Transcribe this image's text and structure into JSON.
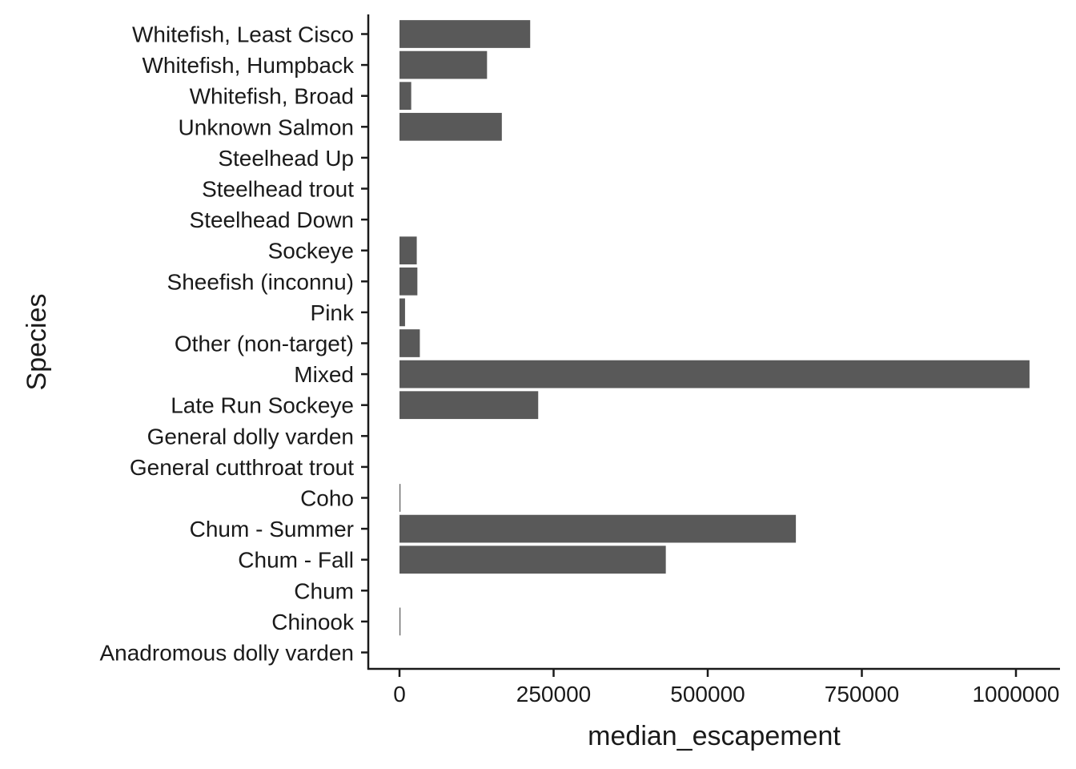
{
  "chart_data": {
    "type": "bar",
    "orientation": "horizontal",
    "xlabel": "median_escapement",
    "ylabel": "Species",
    "xlim": [
      -25000,
      1075000
    ],
    "x_ticks": [
      0,
      250000,
      500000,
      750000,
      1000000
    ],
    "x_tick_labels": [
      "0",
      "250000",
      "500000",
      "750000",
      "1000000"
    ],
    "grid": false,
    "legend": "none",
    "bar_color": "#595959",
    "categories": [
      "Anadromous dolly varden",
      "Chinook",
      "Chum",
      "Chum - Fall",
      "Chum - Summer",
      "Coho",
      "General cutthroat trout",
      "General dolly varden",
      "Late Run Sockeye",
      "Mixed",
      "Other (non-target)",
      "Pink",
      "Sheefish (inconnu)",
      "Sockeye",
      "Steelhead Down",
      "Steelhead trout",
      "Steelhead Up",
      "Unknown Salmon",
      "Whitefish, Broad",
      "Whitefish, Humpback",
      "Whitefish, Least Cisco"
    ],
    "values": [
      0,
      1000,
      0,
      432000,
      643000,
      1500,
      0,
      0,
      225000,
      1022000,
      33000,
      9000,
      29000,
      28000,
      0,
      0,
      0,
      166000,
      19000,
      142000,
      212000
    ]
  }
}
